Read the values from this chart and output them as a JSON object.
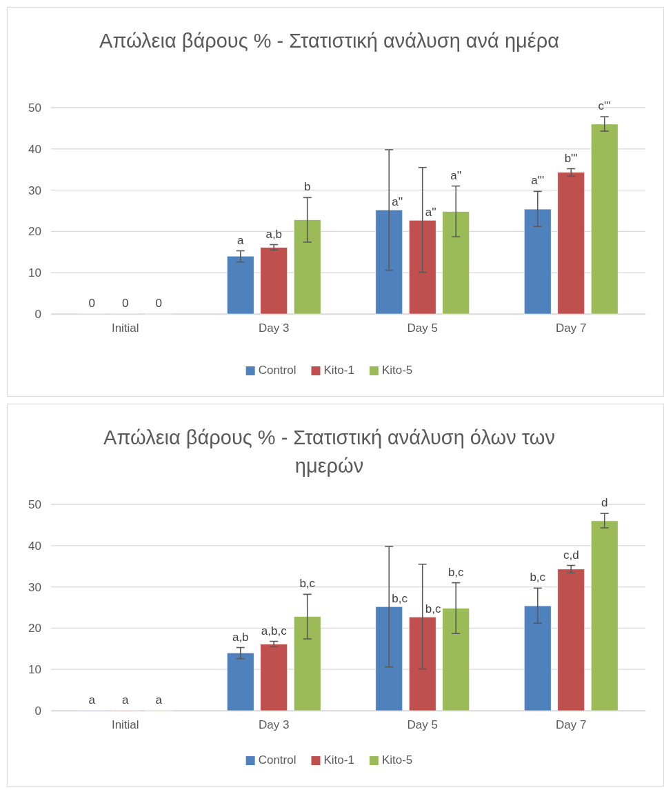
{
  "chart_data": [
    {
      "type": "bar",
      "title": "Απώλεια βάρους % - Στατιστική ανάλυση ανά ημέρα",
      "categories": [
        "Initial",
        "Day 3",
        "Day 5",
        "Day 7"
      ],
      "ylim": [
        0,
        50
      ],
      "yticks": [
        0,
        10,
        20,
        30,
        40,
        50
      ],
      "grid": "y",
      "legend": "bottom",
      "series": [
        {
          "name": "Control",
          "color": "#4f81bd",
          "values": [
            0,
            14.0,
            25.2,
            25.4
          ],
          "errors": [
            null,
            [
              12.6,
              15.3
            ],
            [
              10.6,
              39.8
            ],
            [
              21.2,
              29.7
            ]
          ],
          "value_labels": [
            "0",
            "a",
            "a''",
            "a'''"
          ]
        },
        {
          "name": "Kito-1",
          "color": "#c0504d",
          "values": [
            0,
            16.1,
            22.7,
            34.3
          ],
          "errors": [
            null,
            [
              15.5,
              16.8
            ],
            [
              10.1,
              35.5
            ],
            [
              33.4,
              35.2
            ]
          ],
          "value_labels": [
            "0",
            "a,b",
            "a''",
            "b'''"
          ]
        },
        {
          "name": "Kito-5",
          "color": "#9bbb59",
          "values": [
            0,
            22.8,
            24.8,
            46.0
          ],
          "errors": [
            null,
            [
              17.4,
              28.2
            ],
            [
              18.7,
              31.0
            ],
            [
              44.3,
              47.8
            ]
          ],
          "value_labels": [
            "0",
            "b",
            "a''",
            "c'''"
          ]
        }
      ]
    },
    {
      "type": "bar",
      "title": "Απώλεια βάρους % - Στατιστική ανάλυση όλων των ημερών",
      "categories": [
        "Initial",
        "Day 3",
        "Day 5",
        "Day 7"
      ],
      "ylim": [
        0,
        50
      ],
      "yticks": [
        0,
        10,
        20,
        30,
        40,
        50
      ],
      "grid": "y",
      "legend": "bottom",
      "series": [
        {
          "name": "Control",
          "color": "#4f81bd",
          "values": [
            0,
            14.0,
            25.2,
            25.4
          ],
          "errors": [
            null,
            [
              12.6,
              15.3
            ],
            [
              10.6,
              39.8
            ],
            [
              21.2,
              29.7
            ]
          ],
          "value_labels": [
            "a",
            "a,b",
            "b,c",
            "b,c"
          ]
        },
        {
          "name": "Kito-1",
          "color": "#c0504d",
          "values": [
            0,
            16.1,
            22.7,
            34.3
          ],
          "errors": [
            null,
            [
              15.5,
              16.8
            ],
            [
              10.1,
              35.5
            ],
            [
              33.4,
              35.2
            ]
          ],
          "value_labels": [
            "a",
            "a,b,c",
            "b,c",
            "c,d"
          ]
        },
        {
          "name": "Kito-5",
          "color": "#9bbb59",
          "values": [
            0,
            22.8,
            24.8,
            46.0
          ],
          "errors": [
            null,
            [
              17.4,
              28.2
            ],
            [
              18.7,
              31.0
            ],
            [
              44.3,
              47.8
            ]
          ],
          "value_labels": [
            "a",
            "b,c",
            "b,c",
            "d"
          ]
        }
      ]
    }
  ]
}
